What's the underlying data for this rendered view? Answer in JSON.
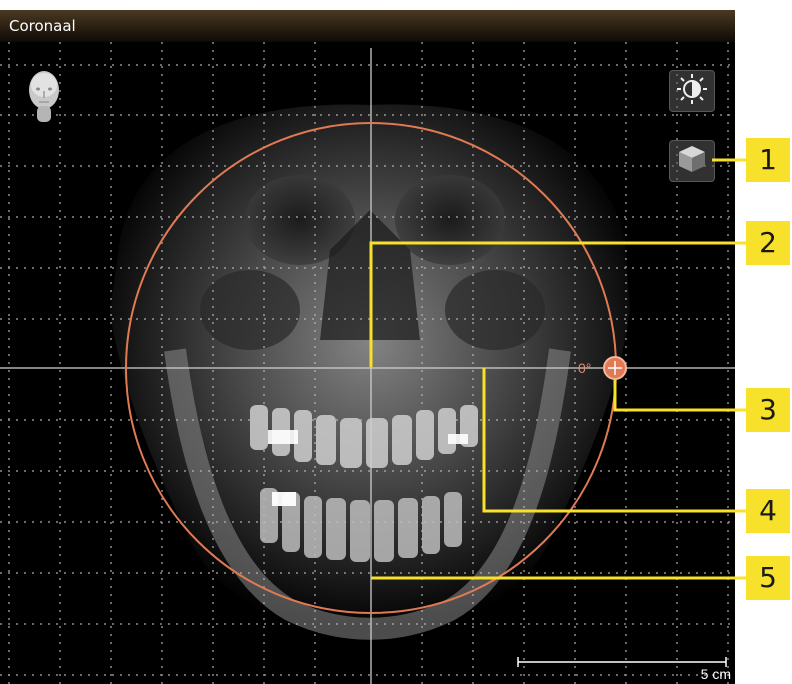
{
  "panel": {
    "title": "Coronaal"
  },
  "toolbar": {
    "brightness_icon": "brightness-contrast-icon",
    "view_icon": "3d-cube-icon",
    "orientation_icon": "head-orientation-icon"
  },
  "rotation": {
    "angle_label": "0°"
  },
  "scale": {
    "label": "5 cm"
  },
  "callouts": [
    "1",
    "2",
    "3",
    "4",
    "5"
  ],
  "colors": {
    "callout": "#f7e12a",
    "circle": "#e07a55",
    "crosshair": "#c8c8c8"
  }
}
